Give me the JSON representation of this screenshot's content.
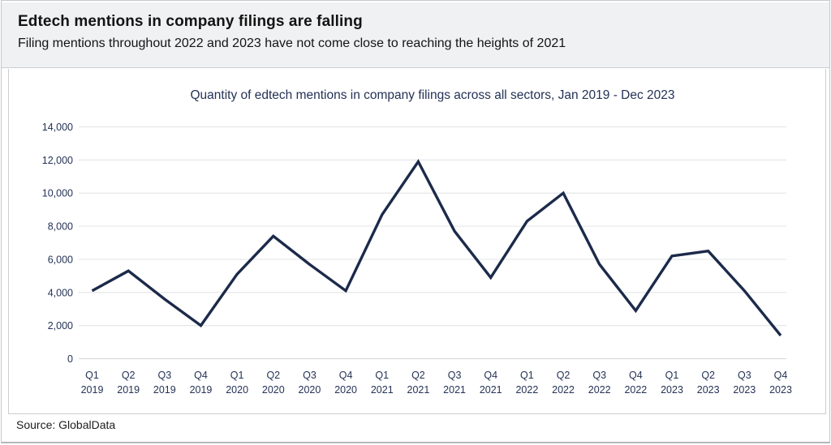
{
  "header": {
    "title": "Edtech mentions in company filings are falling",
    "subtitle": "Filing mentions throughout 2022 and 2023 have not come close to reaching the heights of 2021"
  },
  "footer": {
    "source": "Source: GlobalData"
  },
  "chart_data": {
    "type": "line",
    "title": "Quantity of edtech mentions in company filings across all sectors, Jan 2019 - Dec 2023",
    "series_name": "Edtech mentions in company filings",
    "categories": [
      "Q1 2019",
      "Q2 2019",
      "Q3 2019",
      "Q4 2019",
      "Q1 2020",
      "Q2 2020",
      "Q3 2020",
      "Q4 2020",
      "Q1 2021",
      "Q2 2021",
      "Q3 2021",
      "Q4 2021",
      "Q1 2022",
      "Q2 2022",
      "Q3 2022",
      "Q4 2022",
      "Q1 2023",
      "Q2 2023",
      "Q3 2023",
      "Q4 2023"
    ],
    "values": [
      4100,
      5300,
      3600,
      2000,
      5100,
      7400,
      5700,
      4100,
      8700,
      11900,
      7700,
      4900,
      8300,
      10000,
      5700,
      2900,
      6200,
      6500,
      4100,
      1400
    ],
    "xlabel": "",
    "ylabel": "",
    "ylim": [
      0,
      14000
    ],
    "ytick_step": 2000,
    "grid": true,
    "legend_position": "none",
    "colors": {
      "line": "#1c2a4a",
      "axis_labels": "#243255",
      "gridline": "#e5e7ea",
      "zero_line": "#d9dbde"
    }
  }
}
